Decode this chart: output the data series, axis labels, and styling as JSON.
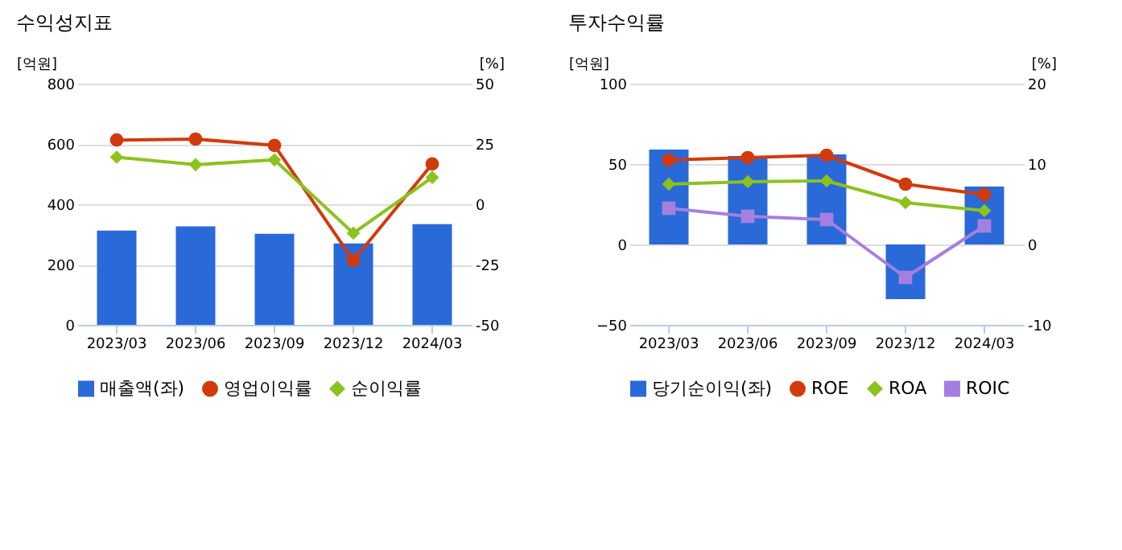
{
  "chart_data": [
    {
      "type": "bar",
      "title": "수익성지표",
      "categories": [
        "2023/03",
        "2023/06",
        "2023/09",
        "2023/12",
        "2024/03"
      ],
      "ylabel": "[억원]",
      "y2label": "[%]",
      "ylim": [
        0,
        800
      ],
      "yticks": [
        0,
        200,
        400,
        600,
        800
      ],
      "y2lim": [
        -50,
        50
      ],
      "y2ticks": [
        -50,
        -25,
        0,
        25,
        50
      ],
      "grid": "y",
      "legend": "bottom",
      "series": [
        {
          "name": "매출액(좌)",
          "color": "#2a69d8",
          "values": [
            313,
            327,
            302,
            270,
            334
          ]
        },
        {
          "name": "영업이익률",
          "type": "line",
          "axis": "y2",
          "marker": "circle",
          "color": "#d23a0c",
          "values": [
            26.6,
            27.0,
            24.4,
            -23.3,
            16.7
          ]
        },
        {
          "name": "순이익률",
          "type": "line",
          "axis": "y2",
          "marker": "diamond",
          "color": "#8cc21e",
          "values": [
            19.5,
            16.4,
            18.4,
            -12.0,
            11.1
          ]
        }
      ]
    },
    {
      "type": "bar",
      "title": "투자수익률",
      "categories": [
        "2023/03",
        "2023/06",
        "2023/09",
        "2023/12",
        "2024/03"
      ],
      "ylabel": "[억원]",
      "y2label": "[%]",
      "ylim": [
        -50,
        100
      ],
      "yticks": [
        -50,
        0,
        50,
        100
      ],
      "y2lim": [
        -10,
        20
      ],
      "y2ticks": [
        -10,
        0,
        10,
        20
      ],
      "grid": "y",
      "legend": "bottom",
      "series": [
        {
          "name": "당기순이익(좌)",
          "color": "#2a69d8",
          "values": [
            59,
            55,
            56,
            -34,
            36
          ]
        },
        {
          "name": "ROE",
          "type": "line",
          "axis": "y2",
          "marker": "circle",
          "color": "#d23a0c",
          "values": [
            10.5,
            10.8,
            11.1,
            7.5,
            6.2
          ]
        },
        {
          "name": "ROA",
          "type": "line",
          "axis": "y2",
          "marker": "diamond",
          "color": "#8cc21e",
          "values": [
            7.5,
            7.8,
            7.9,
            5.2,
            4.2
          ]
        },
        {
          "name": "ROIC",
          "type": "line",
          "axis": "y2",
          "marker": "square",
          "color": "#a57fe0",
          "values": [
            4.5,
            3.5,
            3.1,
            -4.1,
            2.3
          ]
        }
      ]
    }
  ]
}
